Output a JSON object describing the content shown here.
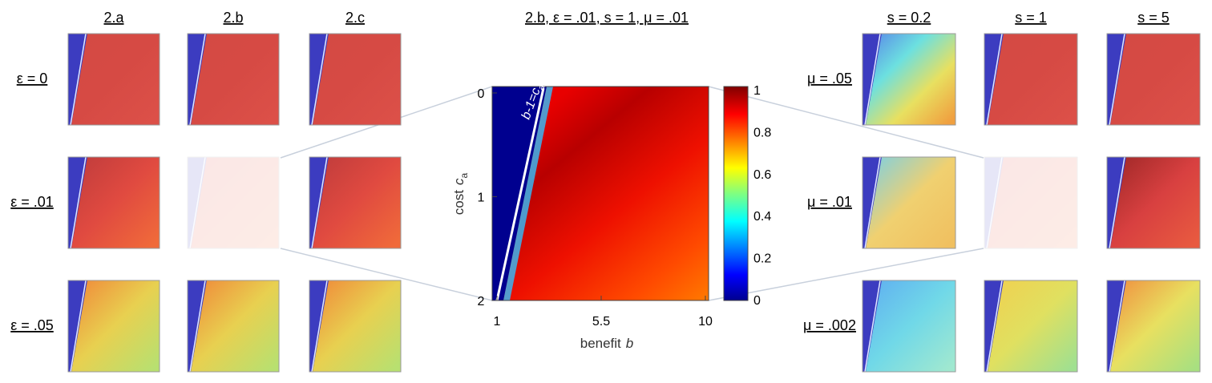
{
  "left": {
    "columns": [
      "2.a",
      "2.b",
      "2.c"
    ],
    "rows": [
      "ε = 0",
      "ε = .01",
      "ε = .05"
    ]
  },
  "center": {
    "title": "2.b, ε = .01, s = 1, μ = .01",
    "y_label": "cost",
    "y_symbol": "c",
    "y_subscript": "a",
    "x_label": "benefit",
    "x_symbol": "b",
    "yticks": [
      0,
      1,
      2
    ],
    "xticks": [
      1,
      5.5,
      10
    ],
    "colorbar_ticks": [
      1,
      0.8,
      0.6,
      0.4,
      0.2,
      0
    ],
    "annotation": "b-1=c",
    "annotation_subscript": "a"
  },
  "right": {
    "columns": [
      "s = 0.2",
      "s = 1",
      "s = 5"
    ],
    "rows": [
      "μ = .05",
      "μ = .01",
      "μ = .002"
    ]
  }
}
